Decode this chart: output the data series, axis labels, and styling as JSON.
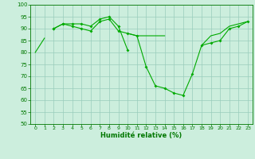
{
  "xlabel": "Humidité relative (%)",
  "background_color": "#cceedd",
  "grid_color": "#99ccbb",
  "line_color": "#00aa00",
  "x": [
    0,
    1,
    2,
    3,
    4,
    5,
    6,
    7,
    8,
    9,
    10,
    11,
    12,
    13,
    14,
    15,
    16,
    17,
    18,
    19,
    20,
    21,
    22,
    23
  ],
  "line1": [
    80,
    86,
    null,
    null,
    null,
    null,
    null,
    null,
    null,
    null,
    null,
    null,
    null,
    null,
    null,
    null,
    null,
    null,
    null,
    null,
    null,
    null,
    null,
    null
  ],
  "line2": [
    null,
    null,
    90,
    92,
    92,
    92,
    91,
    94,
    95,
    91,
    81,
    null,
    null,
    null,
    null,
    null,
    null,
    null,
    null,
    null,
    null,
    null,
    null,
    null
  ],
  "line3": [
    null,
    null,
    90,
    92,
    91,
    90,
    89,
    93,
    94,
    89,
    88,
    87,
    74,
    66,
    65,
    63,
    62,
    71,
    83,
    84,
    85,
    90,
    91,
    93
  ],
  "line4": [
    null,
    null,
    null,
    null,
    null,
    null,
    null,
    null,
    null,
    null,
    88,
    87,
    87,
    87,
    87,
    null,
    null,
    null,
    null,
    null,
    null,
    null,
    null,
    null
  ],
  "line5": [
    null,
    null,
    null,
    null,
    null,
    null,
    null,
    null,
    null,
    null,
    null,
    null,
    null,
    null,
    null,
    null,
    null,
    null,
    83,
    87,
    88,
    91,
    92,
    93
  ],
  "ylim": [
    50,
    100
  ],
  "yticks": [
    50,
    55,
    60,
    65,
    70,
    75,
    80,
    85,
    90,
    95,
    100
  ],
  "xticks": [
    0,
    1,
    2,
    3,
    4,
    5,
    6,
    7,
    8,
    9,
    10,
    11,
    12,
    13,
    14,
    15,
    16,
    17,
    18,
    19,
    20,
    21,
    22,
    23
  ]
}
